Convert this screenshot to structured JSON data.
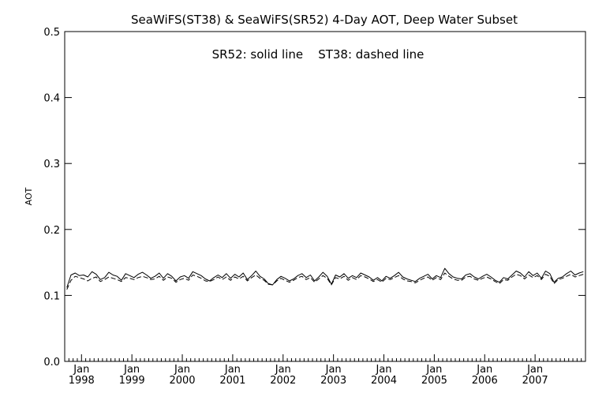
{
  "chart_data": {
    "type": "line",
    "title": "SeaWiFS(ST38) & SeaWiFS(SR52) 4-Day AOT, Deep Water Subset",
    "annotation": "SR52: solid line    ST38: dashed line",
    "xlabel": "",
    "ylabel": "AOT",
    "ylim": [
      0.0,
      0.5
    ],
    "xlim": [
      "1997-09",
      "2007-12"
    ],
    "yticks": [
      "0.0",
      "0.1",
      "0.2",
      "0.3",
      "0.4",
      "0.5"
    ],
    "xticks": [
      {
        "month": "Jan",
        "year": "1998"
      },
      {
        "month": "Jan",
        "year": "1999"
      },
      {
        "month": "Jan",
        "year": "2000"
      },
      {
        "month": "Jan",
        "year": "2001"
      },
      {
        "month": "Jan",
        "year": "2002"
      },
      {
        "month": "Jan",
        "year": "2003"
      },
      {
        "month": "Jan",
        "year": "2004"
      },
      {
        "month": "Jan",
        "year": "2005"
      },
      {
        "month": "Jan",
        "year": "2006"
      },
      {
        "month": "Jan",
        "year": "2007"
      }
    ],
    "grid": false,
    "legend": "none",
    "x": [
      "1997-09",
      "1997-10",
      "1997-11",
      "1997-12",
      "1998-01",
      "1998-02",
      "1998-03",
      "1998-04",
      "1998-05",
      "1998-06",
      "1998-07",
      "1998-08",
      "1998-09",
      "1998-10",
      "1998-11",
      "1998-12",
      "1999-01",
      "1999-02",
      "1999-03",
      "1999-04",
      "1999-05",
      "1999-06",
      "1999-07",
      "1999-08",
      "1999-09",
      "1999-10",
      "1999-11",
      "1999-12",
      "2000-01",
      "2000-02",
      "2000-03",
      "2000-04",
      "2000-05",
      "2000-06",
      "2000-07",
      "2000-08",
      "2000-09",
      "2000-10",
      "2000-11",
      "2000-12",
      "2001-01",
      "2001-02",
      "2001-03",
      "2001-04",
      "2001-05",
      "2001-06",
      "2001-07",
      "2001-08",
      "2001-09",
      "2001-10",
      "2001-11",
      "2001-12",
      "2002-01",
      "2002-02",
      "2002-03",
      "2002-04",
      "2002-05",
      "2002-06",
      "2002-07",
      "2002-08",
      "2002-09",
      "2002-10",
      "2002-11",
      "2002-12",
      "2003-01",
      "2003-02",
      "2003-03",
      "2003-04",
      "2003-05",
      "2003-06",
      "2003-07",
      "2003-08",
      "2003-09",
      "2003-10",
      "2003-11",
      "2003-12",
      "2004-01",
      "2004-02",
      "2004-03",
      "2004-04",
      "2004-05",
      "2004-06",
      "2004-07",
      "2004-08",
      "2004-09",
      "2004-10",
      "2004-11",
      "2004-12",
      "2005-01",
      "2005-02",
      "2005-03",
      "2005-04",
      "2005-05",
      "2005-06",
      "2005-07",
      "2005-08",
      "2005-09",
      "2005-10",
      "2005-11",
      "2005-12",
      "2006-01",
      "2006-02",
      "2006-03",
      "2006-04",
      "2006-05",
      "2006-06",
      "2006-07",
      "2006-08",
      "2006-09",
      "2006-10",
      "2006-11",
      "2006-12",
      "2007-01",
      "2007-02",
      "2007-03",
      "2007-04",
      "2007-05",
      "2007-06",
      "2007-07",
      "2007-08",
      "2007-09",
      "2007-10",
      "2007-11",
      "2007-12"
    ],
    "series": [
      {
        "name": "SR52",
        "style": "solid",
        "color": "#000000",
        "values": [
          0.112,
          0.131,
          0.134,
          0.13,
          0.131,
          0.128,
          0.136,
          0.132,
          0.124,
          0.127,
          0.135,
          0.131,
          0.129,
          0.123,
          0.133,
          0.13,
          0.127,
          0.132,
          0.135,
          0.131,
          0.126,
          0.129,
          0.134,
          0.126,
          0.133,
          0.129,
          0.122,
          0.128,
          0.13,
          0.126,
          0.136,
          0.133,
          0.13,
          0.125,
          0.122,
          0.127,
          0.131,
          0.127,
          0.133,
          0.126,
          0.132,
          0.128,
          0.134,
          0.124,
          0.13,
          0.137,
          0.129,
          0.125,
          0.118,
          0.116,
          0.124,
          0.129,
          0.126,
          0.122,
          0.125,
          0.13,
          0.133,
          0.127,
          0.131,
          0.122,
          0.128,
          0.135,
          0.129,
          0.117,
          0.131,
          0.128,
          0.133,
          0.126,
          0.13,
          0.127,
          0.134,
          0.131,
          0.128,
          0.123,
          0.127,
          0.122,
          0.129,
          0.126,
          0.13,
          0.135,
          0.128,
          0.125,
          0.123,
          0.121,
          0.126,
          0.129,
          0.132,
          0.125,
          0.13,
          0.127,
          0.141,
          0.133,
          0.128,
          0.126,
          0.125,
          0.131,
          0.133,
          0.128,
          0.125,
          0.129,
          0.132,
          0.128,
          0.123,
          0.12,
          0.127,
          0.125,
          0.131,
          0.137,
          0.134,
          0.128,
          0.136,
          0.13,
          0.134,
          0.126,
          0.137,
          0.133,
          0.12,
          0.126,
          0.128,
          0.133,
          0.137,
          0.131,
          0.134,
          0.136
        ]
      },
      {
        "name": "ST38",
        "style": "dashed",
        "color": "#000000",
        "values": [
          0.109,
          0.123,
          0.129,
          0.127,
          0.125,
          0.122,
          0.126,
          0.128,
          0.121,
          0.124,
          0.128,
          0.126,
          0.124,
          0.121,
          0.127,
          0.126,
          0.124,
          0.127,
          0.129,
          0.127,
          0.124,
          0.125,
          0.129,
          0.123,
          0.128,
          0.126,
          0.12,
          0.124,
          0.126,
          0.123,
          0.131,
          0.129,
          0.126,
          0.122,
          0.121,
          0.124,
          0.128,
          0.124,
          0.128,
          0.123,
          0.128,
          0.125,
          0.129,
          0.122,
          0.127,
          0.131,
          0.126,
          0.123,
          0.117,
          0.116,
          0.122,
          0.126,
          0.123,
          0.12,
          0.123,
          0.127,
          0.129,
          0.124,
          0.127,
          0.12,
          0.125,
          0.13,
          0.126,
          0.116,
          0.127,
          0.125,
          0.129,
          0.123,
          0.127,
          0.124,
          0.13,
          0.128,
          0.125,
          0.121,
          0.124,
          0.12,
          0.126,
          0.124,
          0.127,
          0.13,
          0.125,
          0.122,
          0.121,
          0.119,
          0.123,
          0.126,
          0.128,
          0.123,
          0.127,
          0.124,
          0.134,
          0.129,
          0.125,
          0.123,
          0.123,
          0.128,
          0.129,
          0.125,
          0.123,
          0.126,
          0.128,
          0.125,
          0.121,
          0.118,
          0.124,
          0.123,
          0.128,
          0.132,
          0.13,
          0.125,
          0.131,
          0.127,
          0.13,
          0.124,
          0.132,
          0.129,
          0.118,
          0.124,
          0.126,
          0.129,
          0.132,
          0.128,
          0.13,
          0.132
        ]
      }
    ]
  }
}
